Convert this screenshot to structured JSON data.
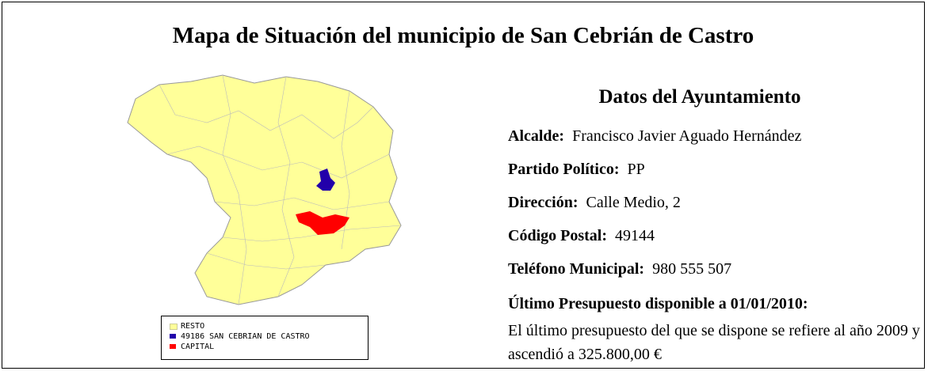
{
  "header": {
    "title": "Mapa de Situación del municipio de San Cebrián de Castro"
  },
  "legend": [
    "RESTO",
    "49186 SAN CEBRIAN DE CASTRO",
    "CAPITAL"
  ],
  "info": {
    "heading": "Datos del Ayuntamiento",
    "fields": [
      {
        "label": "Alcalde:",
        "value": "Francisco Javier Aguado Hernández"
      },
      {
        "label": "Partido Político:",
        "value": "PP"
      },
      {
        "label": "Dirección:",
        "value": "Calle Medio, 2"
      },
      {
        "label": "Código Postal:",
        "value": "49144"
      },
      {
        "label": "Teléfono Municipal:",
        "value": "980 555 507"
      }
    ],
    "budget_heading": "Último Presupuesto disponible a 01/01/2010:",
    "budget_text": "El último presupuesto del que se dispone se refiere al año 2009 y ascendió a 325.800,00 €"
  }
}
